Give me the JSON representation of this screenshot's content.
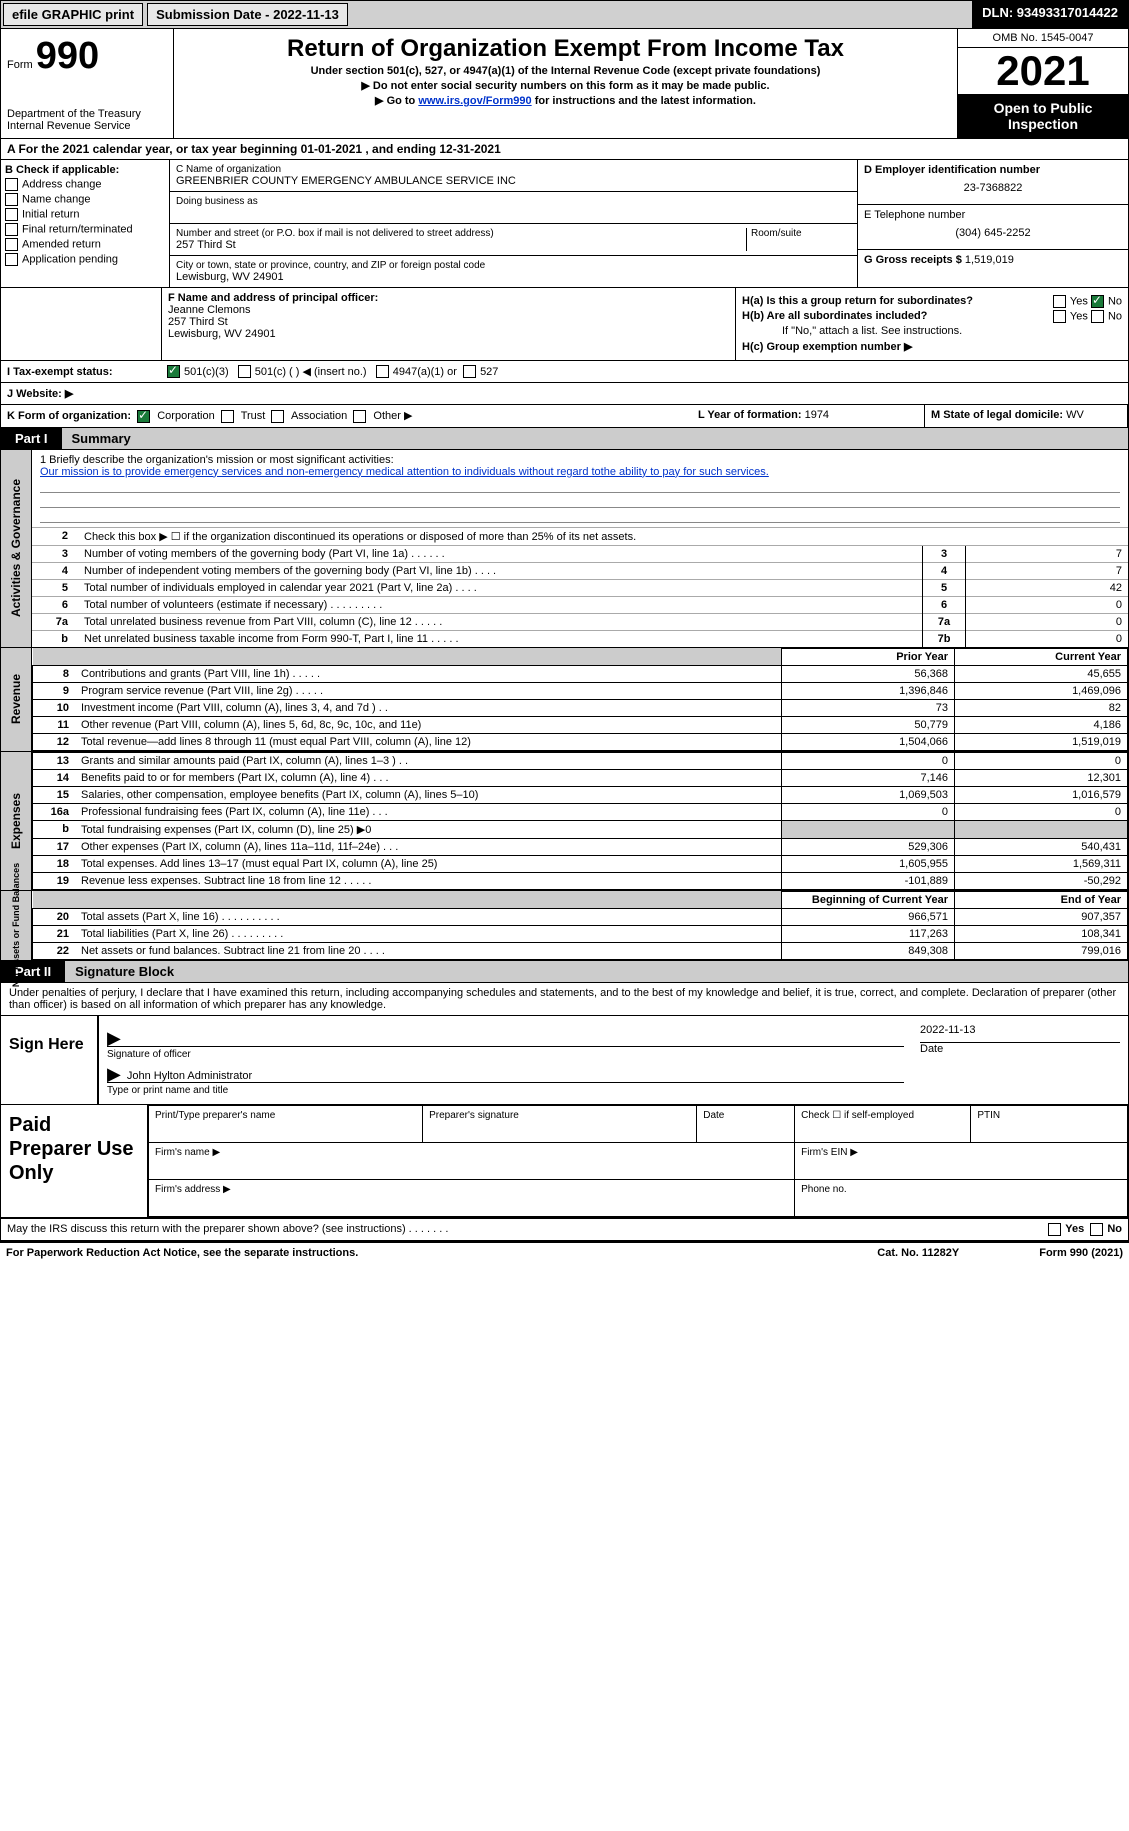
{
  "topbar": {
    "efile": "efile GRAPHIC print",
    "submission_label": "Submission Date - 2022-11-13",
    "dln": "DLN: 93493317014422"
  },
  "header": {
    "form_prefix": "Form",
    "form_number": "990",
    "dept": "Department of the Treasury",
    "irs": "Internal Revenue Service",
    "title": "Return of Organization Exempt From Income Tax",
    "subtitle1": "Under section 501(c), 527, or 4947(a)(1) of the Internal Revenue Code (except private foundations)",
    "subtitle2": "▶ Do not enter social security numbers on this form as it may be made public.",
    "subtitle3_pre": "▶ Go to ",
    "subtitle3_link": "www.irs.gov/Form990",
    "subtitle3_post": " for instructions and the latest information.",
    "omb": "OMB No. 1545-0047",
    "year": "2021",
    "open": "Open to Public Inspection"
  },
  "row_a": "A For the 2021 calendar year, or tax year beginning 01-01-2021   , and ending 12-31-2021",
  "col_b": {
    "title": "B Check if applicable:",
    "opts": [
      "Address change",
      "Name change",
      "Initial return",
      "Final return/terminated",
      "Amended return",
      "Application pending"
    ]
  },
  "col_c": {
    "name_label": "C Name of organization",
    "name": "GREENBRIER COUNTY EMERGENCY AMBULANCE SERVICE INC",
    "dba_label": "Doing business as",
    "street_label": "Number and street (or P.O. box if mail is not delivered to street address)",
    "room_label": "Room/suite",
    "street": "257 Third St",
    "city_label": "City or town, state or province, country, and ZIP or foreign postal code",
    "city": "Lewisburg, WV  24901"
  },
  "col_d": {
    "ein_label": "D Employer identification number",
    "ein": "23-7368822",
    "phone_label": "E Telephone number",
    "phone": "(304) 645-2252",
    "gross_label": "G Gross receipts $",
    "gross": "1,519,019"
  },
  "section_f": {
    "label": "F Name and address of principal officer:",
    "name": "Jeanne Clemons",
    "street": "257 Third St",
    "city": "Lewisburg, WV  24901"
  },
  "section_h": {
    "ha": "H(a)  Is this a group return for subordinates?",
    "hb": "H(b)  Are all subordinates included?",
    "hb_note": "If \"No,\" attach a list. See instructions.",
    "hc": "H(c)  Group exemption number ▶",
    "yes": "Yes",
    "no": "No"
  },
  "row_i": {
    "label": "I  Tax-exempt status:",
    "opt1": "501(c)(3)",
    "opt2": "501(c) (  ) ◀ (insert no.)",
    "opt3": "4947(a)(1) or",
    "opt4": "527"
  },
  "row_j": "J  Website: ▶",
  "row_k": {
    "label": "K Form of organization:",
    "opts": [
      "Corporation",
      "Trust",
      "Association",
      "Other ▶"
    ],
    "l_label": "L Year of formation:",
    "l_val": "1974",
    "m_label": "M State of legal domicile:",
    "m_val": "WV"
  },
  "part1": {
    "tag": "Part I",
    "title": "Summary"
  },
  "part2": {
    "tag": "Part II",
    "title": "Signature Block"
  },
  "vtabs": {
    "activities": "Activities & Governance",
    "revenue": "Revenue",
    "expenses": "Expenses",
    "netassets": "Net Assets or Fund Balances"
  },
  "mission": {
    "label": "1    Briefly describe the organization's mission or most significant activities:",
    "text": "Our mission is to provide emergency services and non-emergency medical attention to individuals without regard tothe ability to pay for such services."
  },
  "activities_rows": [
    {
      "n": "2",
      "desc": "Check this box ▶ ☐  if the organization discontinued its operations or disposed of more than 25% of its net assets.",
      "box": "",
      "val": ""
    },
    {
      "n": "3",
      "desc": "Number of voting members of the governing body (Part VI, line 1a)   .    .    .    .    .    .",
      "box": "3",
      "val": "7"
    },
    {
      "n": "4",
      "desc": "Number of independent voting members of the governing body (Part VI, line 1b)   .    .    .    .",
      "box": "4",
      "val": "7"
    },
    {
      "n": "5",
      "desc": "Total number of individuals employed in calendar year 2021 (Part V, line 2a)   .    .    .    .",
      "box": "5",
      "val": "42"
    },
    {
      "n": "6",
      "desc": "Total number of volunteers (estimate if necessary)   .    .    .    .    .    .    .    .    .",
      "box": "6",
      "val": "0"
    },
    {
      "n": "7a",
      "desc": "Total unrelated business revenue from Part VIII, column (C), line 12   .    .    .    .    .",
      "box": "7a",
      "val": "0"
    },
    {
      "n": "b",
      "desc": "Net unrelated business taxable income from Form 990-T, Part I, line 11   .    .    .    .    .",
      "box": "7b",
      "val": "0"
    }
  ],
  "fin_headers": {
    "py": "Prior Year",
    "cy": "Current Year"
  },
  "revenue_rows": [
    {
      "n": "8",
      "desc": "Contributions and grants (Part VIII, line 1h)   .    .    .    .    .",
      "py": "56,368",
      "cy": "45,655"
    },
    {
      "n": "9",
      "desc": "Program service revenue (Part VIII, line 2g)   .    .    .    .    .",
      "py": "1,396,846",
      "cy": "1,469,096"
    },
    {
      "n": "10",
      "desc": "Investment income (Part VIII, column (A), lines 3, 4, and 7d )   .    .",
      "py": "73",
      "cy": "82"
    },
    {
      "n": "11",
      "desc": "Other revenue (Part VIII, column (A), lines 5, 6d, 8c, 9c, 10c, and 11e)",
      "py": "50,779",
      "cy": "4,186"
    },
    {
      "n": "12",
      "desc": "Total revenue—add lines 8 through 11 (must equal Part VIII, column (A), line 12)",
      "py": "1,504,066",
      "cy": "1,519,019"
    }
  ],
  "expense_rows": [
    {
      "n": "13",
      "desc": "Grants and similar amounts paid (Part IX, column (A), lines 1–3 )   .    .",
      "py": "0",
      "cy": "0"
    },
    {
      "n": "14",
      "desc": "Benefits paid to or for members (Part IX, column (A), line 4)   .    .    .",
      "py": "7,146",
      "cy": "12,301"
    },
    {
      "n": "15",
      "desc": "Salaries, other compensation, employee benefits (Part IX, column (A), lines 5–10)",
      "py": "1,069,503",
      "cy": "1,016,579"
    },
    {
      "n": "16a",
      "desc": "Professional fundraising fees (Part IX, column (A), line 11e)   .    .    .",
      "py": "0",
      "cy": "0"
    },
    {
      "n": "b",
      "desc": "Total fundraising expenses (Part IX, column (D), line 25) ▶0",
      "py": "shade",
      "cy": "shade"
    },
    {
      "n": "17",
      "desc": "Other expenses (Part IX, column (A), lines 11a–11d, 11f–24e)   .    .    .",
      "py": "529,306",
      "cy": "540,431"
    },
    {
      "n": "18",
      "desc": "Total expenses. Add lines 13–17 (must equal Part IX, column (A), line 25)",
      "py": "1,605,955",
      "cy": "1,569,311"
    },
    {
      "n": "19",
      "desc": "Revenue less expenses. Subtract line 18 from line 12   .    .    .    .    .",
      "py": "-101,889",
      "cy": "-50,292"
    }
  ],
  "na_headers": {
    "py": "Beginning of Current Year",
    "cy": "End of Year"
  },
  "netasset_rows": [
    {
      "n": "20",
      "desc": "Total assets (Part X, line 16)   .    .    .    .    .    .    .    .    .    .",
      "py": "966,571",
      "cy": "907,357"
    },
    {
      "n": "21",
      "desc": "Total liabilities (Part X, line 26)   .    .    .    .    .    .    .    .    .",
      "py": "117,263",
      "cy": "108,341"
    },
    {
      "n": "22",
      "desc": "Net assets or fund balances. Subtract line 21 from line 20   .    .    .    .",
      "py": "849,308",
      "cy": "799,016"
    }
  ],
  "sig": {
    "declare": "Under penalties of perjury, I declare that I have examined this return, including accompanying schedules and statements, and to the best of my knowledge and belief, it is true, correct, and complete. Declaration of preparer (other than officer) is based on all information of which preparer has any knowledge.",
    "sign_here": "Sign Here",
    "sig_officer": "Signature of officer",
    "date": "Date",
    "date_val": "2022-11-13",
    "name_val": "John Hylton  Administrator",
    "name_label": "Type or print name and title"
  },
  "paid": {
    "title": "Paid Preparer Use Only",
    "h1": "Print/Type preparer's name",
    "h2": "Preparer's signature",
    "h3": "Date",
    "h4_pre": "Check ☐ if self-employed",
    "h5": "PTIN",
    "firm_name": "Firm's name    ▶",
    "firm_ein": "Firm's EIN ▶",
    "firm_addr": "Firm's address ▶",
    "phone": "Phone no."
  },
  "footer": {
    "discuss": "May the IRS discuss this return with the preparer shown above? (see instructions)   .    .    .    .    .    .    .",
    "yes": "Yes",
    "no": "No",
    "paperwork": "For Paperwork Reduction Act Notice, see the separate instructions.",
    "cat": "Cat. No. 11282Y",
    "form": "Form 990 (2021)"
  }
}
